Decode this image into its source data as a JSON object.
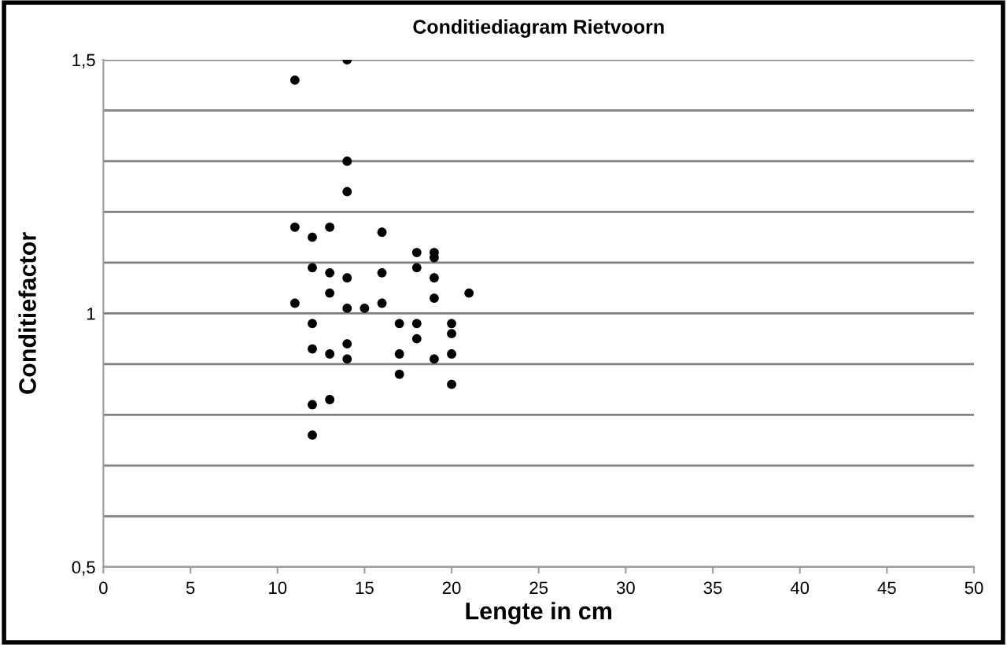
{
  "chart_data": {
    "type": "scatter",
    "title": "Conditiediagram Rietvoorn",
    "xlabel": "Lengte in cm",
    "ylabel": "Conditiefactor",
    "x": [
      11,
      14,
      14,
      14,
      11,
      13,
      12,
      16,
      18,
      19,
      19,
      12,
      13,
      14,
      16,
      18,
      19,
      13,
      21,
      11,
      14,
      15,
      16,
      19,
      12,
      17,
      18,
      20,
      20,
      18,
      14,
      12,
      13,
      14,
      17,
      19,
      20,
      17,
      20,
      13,
      12,
      12
    ],
    "values": [
      1.46,
      1.5,
      1.3,
      1.24,
      1.17,
      1.17,
      1.15,
      1.16,
      1.12,
      1.12,
      1.11,
      1.09,
      1.08,
      1.07,
      1.08,
      1.09,
      1.07,
      1.04,
      1.04,
      1.02,
      1.01,
      1.01,
      1.02,
      1.03,
      0.98,
      0.98,
      0.98,
      0.98,
      0.96,
      0.95,
      0.94,
      0.93,
      0.92,
      0.91,
      0.92,
      0.91,
      0.92,
      0.88,
      0.86,
      0.83,
      0.82,
      0.76
    ],
    "color": "#000000",
    "marker": "circle",
    "xlim": [
      0,
      50
    ],
    "xticks": [
      0,
      5,
      10,
      15,
      20,
      25,
      30,
      35,
      40,
      45,
      50
    ],
    "ylim": [
      0.5,
      1.5
    ],
    "yticks": [
      {
        "value": 0.5,
        "label": "0,5"
      },
      {
        "value": 0.6,
        "label": null
      },
      {
        "value": 0.7,
        "label": null
      },
      {
        "value": 0.8,
        "label": null
      },
      {
        "value": 0.9,
        "label": null
      },
      {
        "value": 1,
        "label": "1"
      },
      {
        "value": 1.1,
        "label": null
      },
      {
        "value": 1.2,
        "label": null
      },
      {
        "value": 1.3,
        "label": null
      },
      {
        "value": 1.4,
        "label": null
      },
      {
        "value": 1.5,
        "label": "1,5"
      }
    ],
    "grid": "y",
    "legend": false
  }
}
